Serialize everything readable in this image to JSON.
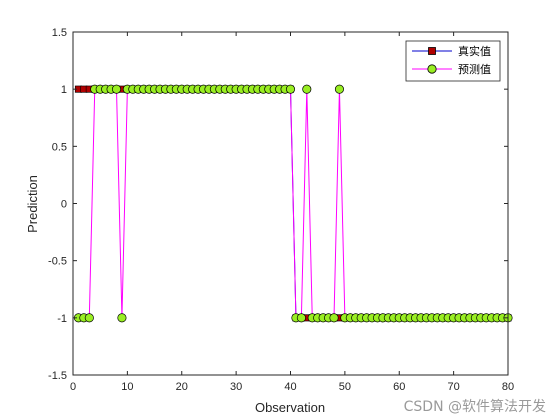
{
  "chart_data": {
    "type": "line",
    "xlabel": "Observation",
    "ylabel": "Prediction",
    "xlim": [
      0,
      80
    ],
    "ylim": [
      -1.5,
      1.5
    ],
    "xticks": [
      0,
      10,
      20,
      30,
      40,
      50,
      60,
      70,
      80
    ],
    "yticks": [
      -1.5,
      -1,
      -0.5,
      0,
      0.5,
      1,
      1.5
    ],
    "xtick_labels": [
      "0",
      "10",
      "20",
      "30",
      "40",
      "50",
      "60",
      "70",
      "80"
    ],
    "ytick_labels": [
      "-1.5",
      "-1",
      "-0.5",
      "0",
      "0.5",
      "1",
      "1.5"
    ],
    "grid": false,
    "legend_position": "top-right",
    "x": [
      1,
      2,
      3,
      4,
      5,
      6,
      7,
      8,
      9,
      10,
      11,
      12,
      13,
      14,
      15,
      16,
      17,
      18,
      19,
      20,
      21,
      22,
      23,
      24,
      25,
      26,
      27,
      28,
      29,
      30,
      31,
      32,
      33,
      34,
      35,
      36,
      37,
      38,
      39,
      40,
      41,
      42,
      43,
      44,
      45,
      46,
      47,
      48,
      49,
      50,
      51,
      52,
      53,
      54,
      55,
      56,
      57,
      58,
      59,
      60,
      61,
      62,
      63,
      64,
      65,
      66,
      67,
      68,
      69,
      70,
      71,
      72,
      73,
      74,
      75,
      76,
      77,
      78,
      79,
      80
    ],
    "series": [
      {
        "name": "真实值",
        "color": "#0000cc",
        "marker": "square",
        "marker_color": "#b00000",
        "values": [
          1,
          1,
          1,
          1,
          1,
          1,
          1,
          1,
          1,
          1,
          1,
          1,
          1,
          1,
          1,
          1,
          1,
          1,
          1,
          1,
          1,
          1,
          1,
          1,
          1,
          1,
          1,
          1,
          1,
          1,
          1,
          1,
          1,
          1,
          1,
          1,
          1,
          1,
          1,
          1,
          -1,
          -1,
          -1,
          -1,
          -1,
          -1,
          -1,
          -1,
          -1,
          -1,
          -1,
          -1,
          -1,
          -1,
          -1,
          -1,
          -1,
          -1,
          -1,
          -1,
          -1,
          -1,
          -1,
          -1,
          -1,
          -1,
          -1,
          -1,
          -1,
          -1,
          -1,
          -1,
          -1,
          -1,
          -1,
          -1,
          -1,
          -1,
          -1,
          -1
        ]
      },
      {
        "name": "预测值",
        "color": "#ff00ff",
        "marker": "circle",
        "marker_color": "#99ee22",
        "values": [
          -1,
          -1,
          -1,
          1,
          1,
          1,
          1,
          1,
          -1,
          1,
          1,
          1,
          1,
          1,
          1,
          1,
          1,
          1,
          1,
          1,
          1,
          1,
          1,
          1,
          1,
          1,
          1,
          1,
          1,
          1,
          1,
          1,
          1,
          1,
          1,
          1,
          1,
          1,
          1,
          1,
          -1,
          -1,
          1,
          -1,
          -1,
          -1,
          -1,
          -1,
          1,
          -1,
          -1,
          -1,
          -1,
          -1,
          -1,
          -1,
          -1,
          -1,
          -1,
          -1,
          -1,
          -1,
          -1,
          -1,
          -1,
          -1,
          -1,
          -1,
          -1,
          -1,
          -1,
          -1,
          -1,
          -1,
          -1,
          -1,
          -1,
          -1,
          -1,
          -1
        ]
      }
    ]
  },
  "watermark": "CSDN @软件算法开发"
}
